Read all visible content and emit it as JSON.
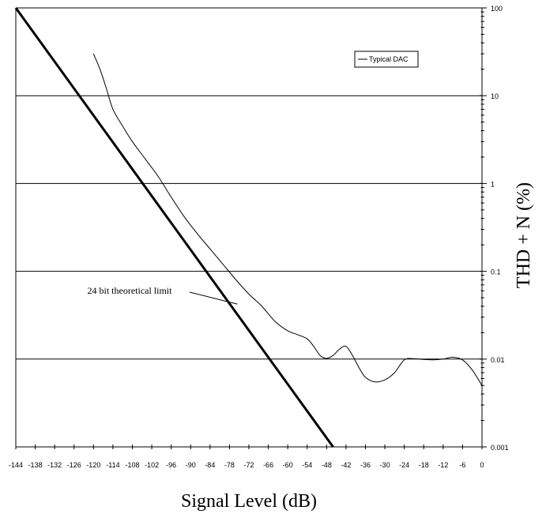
{
  "chart_data": {
    "type": "line",
    "xlabel": "Signal Level (dB)",
    "ylabel": "THD + N (%)",
    "x_ticks": [
      -144,
      -138,
      -132,
      -126,
      -120,
      -114,
      -108,
      -102,
      -96,
      -90,
      -84,
      -78,
      -72,
      -66,
      -60,
      -54,
      -48,
      -42,
      -36,
      -30,
      -24,
      -18,
      -12,
      -6,
      0
    ],
    "y_ticks": [
      0.001,
      0.01,
      0.1,
      1,
      10,
      100
    ],
    "y_tick_labels": [
      "0.001",
      "0.01",
      "0.1",
      "1",
      "10",
      "100"
    ],
    "xlim": [
      -144,
      0
    ],
    "ylim": [
      0.001,
      100
    ],
    "y_scale": "log",
    "grid": "horizontal",
    "legend_position": "top-right",
    "series": [
      {
        "name": "Typical DAC",
        "style": "thin",
        "color": "#000000",
        "points": [
          [
            -120,
            30
          ],
          [
            -118,
            20
          ],
          [
            -116,
            12
          ],
          [
            -114,
            7
          ],
          [
            -111,
            4.5
          ],
          [
            -108,
            3
          ],
          [
            -104,
            1.9
          ],
          [
            -100,
            1.2
          ],
          [
            -96,
            0.7
          ],
          [
            -92,
            0.42
          ],
          [
            -88,
            0.27
          ],
          [
            -84,
            0.18
          ],
          [
            -80,
            0.12
          ],
          [
            -76,
            0.08
          ],
          [
            -72,
            0.055
          ],
          [
            -68,
            0.04
          ],
          [
            -64,
            0.027
          ],
          [
            -60,
            0.021
          ],
          [
            -57,
            0.019
          ],
          [
            -54,
            0.017
          ],
          [
            -52,
            0.014
          ],
          [
            -50,
            0.011
          ],
          [
            -48,
            0.0102
          ],
          [
            -46,
            0.011
          ],
          [
            -44,
            0.013
          ],
          [
            -42,
            0.014
          ],
          [
            -40,
            0.011
          ],
          [
            -38,
            0.008
          ],
          [
            -36,
            0.0062
          ],
          [
            -33,
            0.0055
          ],
          [
            -30,
            0.0058
          ],
          [
            -27,
            0.007
          ],
          [
            -24,
            0.0098
          ],
          [
            -21,
            0.0101
          ],
          [
            -18,
            0.0099
          ],
          [
            -15,
            0.0098
          ],
          [
            -12,
            0.01
          ],
          [
            -9,
            0.0105
          ],
          [
            -6,
            0.0098
          ],
          [
            -3,
            0.0075
          ],
          [
            0,
            0.005
          ]
        ]
      },
      {
        "name": "24 bit theoretical limit",
        "style": "thick",
        "color": "#000000",
        "points": [
          [
            -144,
            100
          ],
          [
            -46,
            0.001
          ]
        ]
      }
    ],
    "annotations": [
      {
        "text": "24 bit theoretical limit",
        "x": -89,
        "y": 0.06,
        "pointer_to": [
          -78,
          0.045
        ]
      }
    ]
  }
}
